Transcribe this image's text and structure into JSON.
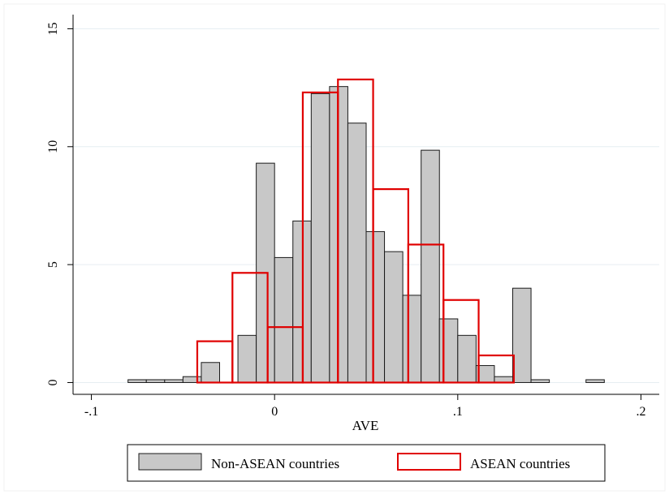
{
  "chart_data": {
    "type": "bar",
    "title": "",
    "xlabel": "AVE",
    "ylabel": "",
    "xlim": [
      -0.11,
      0.21
    ],
    "ylim": [
      -0.5,
      15.6
    ],
    "x_ticks": [
      {
        "value": -0.1,
        "label": "-.1"
      },
      {
        "value": 0,
        "label": "0"
      },
      {
        "value": 0.1,
        "label": ".1"
      },
      {
        "value": 0.2,
        "label": ".2"
      }
    ],
    "y_ticks": [
      {
        "value": 0,
        "label": "0"
      },
      {
        "value": 5,
        "label": "5"
      },
      {
        "value": 10,
        "label": "10"
      },
      {
        "value": 15,
        "label": "15"
      }
    ],
    "grid": true,
    "legend": "bottom",
    "series": [
      {
        "name": "Non-ASEAN countries",
        "style": "filled",
        "fill": "#c8c8c8",
        "stroke": "#1a1a1a",
        "bin_width": 0.01,
        "bins": [
          {
            "x0": -0.08,
            "value": 0.12
          },
          {
            "x0": -0.07,
            "value": 0.12
          },
          {
            "x0": -0.06,
            "value": 0.12
          },
          {
            "x0": -0.05,
            "value": 0.25
          },
          {
            "x0": -0.04,
            "value": 0.85
          },
          {
            "x0": -0.02,
            "value": 2.0
          },
          {
            "x0": -0.01,
            "value": 9.3
          },
          {
            "x0": 0.0,
            "value": 5.3
          },
          {
            "x0": 0.01,
            "value": 6.85
          },
          {
            "x0": 0.02,
            "value": 12.25
          },
          {
            "x0": 0.03,
            "value": 12.55
          },
          {
            "x0": 0.04,
            "value": 11.0
          },
          {
            "x0": 0.05,
            "value": 6.4
          },
          {
            "x0": 0.06,
            "value": 5.55
          },
          {
            "x0": 0.07,
            "value": 3.7
          },
          {
            "x0": 0.08,
            "value": 9.85
          },
          {
            "x0": 0.09,
            "value": 2.7
          },
          {
            "x0": 0.1,
            "value": 2.0
          },
          {
            "x0": 0.11,
            "value": 0.72
          },
          {
            "x0": 0.12,
            "value": 0.25
          },
          {
            "x0": 0.13,
            "value": 4.0
          },
          {
            "x0": 0.14,
            "value": 0.12
          },
          {
            "x0": 0.17,
            "value": 0.12
          }
        ]
      },
      {
        "name": "ASEAN countries",
        "style": "outline",
        "stroke": "#e00000",
        "bin_width": 0.0192,
        "bins": [
          {
            "x0": -0.0422,
            "value": 1.75
          },
          {
            "x0": -0.023,
            "value": 4.65
          },
          {
            "x0": -0.0038,
            "value": 2.35
          },
          {
            "x0": 0.0154,
            "value": 12.3
          },
          {
            "x0": 0.0346,
            "value": 12.85
          },
          {
            "x0": 0.0538,
            "value": 8.2
          },
          {
            "x0": 0.073,
            "value": 5.85
          },
          {
            "x0": 0.0922,
            "value": 3.5
          },
          {
            "x0": 0.1114,
            "value": 1.15
          }
        ]
      }
    ]
  }
}
